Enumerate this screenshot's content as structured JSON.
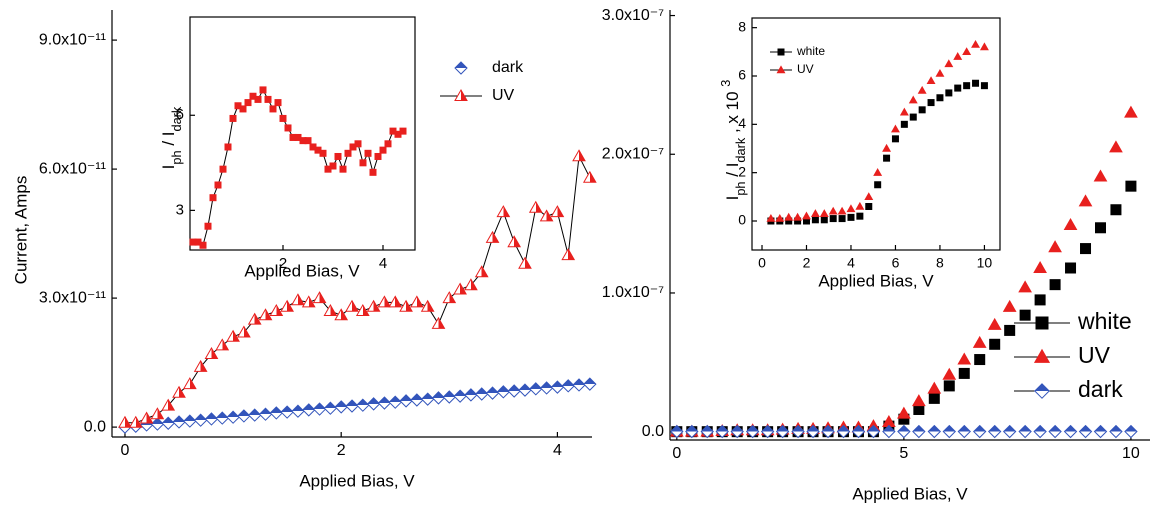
{
  "chart_data": [
    {
      "type": "scatter",
      "xlabel": "Applied Bias, V",
      "ylabel": "Current, Amps",
      "xlim": [
        -0.12,
        4.32
      ],
      "xticks": [
        0,
        2,
        4
      ],
      "ylim": [
        -2.3e-12,
        9.7e-11
      ],
      "yticks": [
        {
          "value": 0,
          "label": "0.0"
        },
        {
          "value": 3e-11,
          "label": "3.0x10⁻¹¹"
        },
        {
          "value": 6e-11,
          "label": "6.0x10⁻¹¹"
        },
        {
          "value": 9e-11,
          "label": "9.0x10⁻¹¹"
        }
      ],
      "x": [
        0,
        0.1,
        0.2,
        0.3,
        0.4,
        0.5,
        0.6,
        0.7,
        0.8,
        0.9,
        1.0,
        1.1,
        1.2,
        1.3,
        1.4,
        1.5,
        1.6,
        1.7,
        1.8,
        1.9,
        2.0,
        2.1,
        2.2,
        2.3,
        2.4,
        2.5,
        2.6,
        2.7,
        2.8,
        2.9,
        3.0,
        3.1,
        3.2,
        3.3,
        3.4,
        3.5,
        3.6,
        3.7,
        3.8,
        3.9,
        4.0,
        4.1,
        4.2,
        4.3
      ],
      "series": [
        {
          "name": "dark",
          "color": "#3355bb",
          "marker": "diamond",
          "fill": "half",
          "line": false,
          "values": [
            0,
            2e-13,
            5e-13,
            7e-13,
            9e-13,
            1.2e-12,
            1.4e-12,
            1.6e-12,
            1.9e-12,
            2.1e-12,
            2.3e-12,
            2.6e-12,
            2.8e-12,
            3e-12,
            3.3e-12,
            3.5e-12,
            3.7e-12,
            4e-12,
            4.2e-12,
            4.4e-12,
            4.7e-12,
            4.9e-12,
            5.1e-12,
            5.4e-12,
            5.6e-12,
            5.8e-12,
            6.1e-12,
            6.3e-12,
            6.5e-12,
            6.8e-12,
            7e-12,
            7.2e-12,
            7.5e-12,
            7.7e-12,
            7.9e-12,
            8.2e-12,
            8.4e-12,
            8.6e-12,
            8.9e-12,
            9.1e-12,
            9.3e-12,
            9.6e-12,
            9.8e-12,
            1e-11
          ]
        },
        {
          "name": "UV",
          "color": "#e8201e",
          "marker": "triangle",
          "fill": "half",
          "line": true,
          "values": [
            1e-12,
            1e-12,
            2e-12,
            3e-12,
            5e-12,
            8e-12,
            1e-11,
            1.4e-11,
            1.7e-11,
            1.9e-11,
            2.1e-11,
            2.2e-11,
            2.5e-11,
            2.6e-11,
            2.7e-11,
            2.8e-11,
            2.95e-11,
            2.9e-11,
            3e-11,
            2.7e-11,
            2.6e-11,
            2.8e-11,
            2.7e-11,
            2.8e-11,
            2.9e-11,
            2.9e-11,
            2.8e-11,
            2.9e-11,
            2.8e-11,
            2.4e-11,
            3e-11,
            3.2e-11,
            3.3e-11,
            3.6e-11,
            4.4e-11,
            5e-11,
            4.3e-11,
            3.8e-11,
            5.1e-11,
            4.9e-11,
            5e-11,
            4e-11,
            6.3e-11,
            5.8e-11
          ]
        }
      ]
    },
    {
      "type": "scatter",
      "xlabel": "Applied Bias, V",
      "ylabel_parts": [
        "I",
        "ph",
        " / I",
        "dark"
      ],
      "xlim": [
        0.14,
        4.64
      ],
      "xticks": [
        2,
        4
      ],
      "ylim": [
        1.75,
        9.1
      ],
      "yticks": [
        3,
        6
      ],
      "x": [
        0.2,
        0.3,
        0.4,
        0.5,
        0.6,
        0.7,
        0.8,
        0.9,
        1.0,
        1.1,
        1.2,
        1.3,
        1.4,
        1.5,
        1.6,
        1.7,
        1.8,
        1.9,
        2.0,
        2.1,
        2.2,
        2.3,
        2.4,
        2.5,
        2.6,
        2.7,
        2.8,
        2.9,
        3.0,
        3.1,
        3.2,
        3.3,
        3.4,
        3.5,
        3.6,
        3.7,
        3.8,
        3.9,
        4.0,
        4.1,
        4.2,
        4.3,
        4.4
      ],
      "series": [
        {
          "color": "#e8201e",
          "marker": "square",
          "fill": "solid",
          "line": true,
          "values": [
            2.0,
            2.0,
            1.9,
            2.5,
            3.4,
            3.8,
            4.3,
            5.0,
            5.9,
            6.3,
            6.2,
            6.4,
            6.6,
            6.5,
            6.8,
            6.5,
            6.2,
            6.4,
            5.9,
            5.6,
            5.3,
            5.3,
            5.2,
            5.2,
            5.0,
            4.9,
            4.8,
            4.3,
            4.4,
            4.7,
            4.3,
            4.8,
            5.0,
            5.1,
            4.5,
            4.8,
            4.2,
            4.7,
            4.9,
            5.1,
            5.5,
            5.4,
            5.5
          ]
        }
      ]
    },
    {
      "type": "scatter",
      "xlabel": "Applied Bias, V",
      "xlim": [
        -0.15,
        10.42
      ],
      "xticks": [
        0,
        5,
        10
      ],
      "ylim": [
        -6e-09,
        3.04e-07
      ],
      "yticks": [
        {
          "value": 0,
          "label": "0.0"
        },
        {
          "value": 1e-07,
          "label": "1.0x10⁻⁷"
        },
        {
          "value": 2e-07,
          "label": "2.0x10⁻⁷"
        },
        {
          "value": 3e-07,
          "label": "3.0x10⁻⁷"
        }
      ],
      "x": [
        0,
        0.33,
        0.67,
        1,
        1.33,
        1.67,
        2,
        2.33,
        2.67,
        3,
        3.33,
        3.67,
        4,
        4.33,
        4.67,
        5,
        5.33,
        5.67,
        6,
        6.33,
        6.67,
        7,
        7.33,
        7.67,
        8,
        8.33,
        8.67,
        9,
        9.33,
        9.67,
        10
      ],
      "series": [
        {
          "name": "white",
          "color": "#000000",
          "marker": "square",
          "fill": "solid",
          "line": false,
          "values": [
            0,
            0,
            0,
            0,
            0,
            0,
            0,
            0,
            0,
            0,
            0,
            0,
            0,
            0,
            4e-09,
            9e-09,
            1.6e-08,
            2.4e-08,
            3.3e-08,
            4.2e-08,
            5.2e-08,
            6.3e-08,
            7.3e-08,
            8.4e-08,
            9.5e-08,
            1.06e-07,
            1.18e-07,
            1.32e-07,
            1.47e-07,
            1.6e-07,
            1.77e-07
          ]
        },
        {
          "name": "UV",
          "color": "#e8201e",
          "marker": "triangle",
          "fill": "solid",
          "line": false,
          "values": [
            0,
            0,
            0,
            5e-10,
            1e-09,
            1e-09,
            1e-09,
            1.5e-09,
            2e-09,
            2e-09,
            2.5e-09,
            3e-09,
            3e-09,
            4e-09,
            7e-09,
            1.3e-08,
            2.2e-08,
            3.1e-08,
            4.1e-08,
            5.2e-08,
            6.4e-08,
            7.7e-08,
            9e-08,
            1.04e-07,
            1.18e-07,
            1.33e-07,
            1.49e-07,
            1.66e-07,
            1.84e-07,
            2.05e-07,
            2.3e-07
          ]
        },
        {
          "name": "dark",
          "color": "#3355bb",
          "marker": "diamond",
          "fill": "half",
          "line": false,
          "values": [
            1e-10,
            1e-10,
            1e-10,
            1e-10,
            1e-10,
            1e-10,
            1e-10,
            1e-10,
            1e-10,
            1e-10,
            1e-10,
            1e-10,
            1e-10,
            1e-10,
            1e-10,
            1e-10,
            1e-10,
            1e-10,
            1e-10,
            1e-10,
            1e-10,
            1e-10,
            1e-10,
            1e-10,
            1e-10,
            1e-10,
            1e-10,
            1e-10,
            1e-10,
            1e-10,
            1e-10
          ]
        }
      ]
    },
    {
      "type": "scatter",
      "xlabel": "Applied Bias, V",
      "ylabel_parts": [
        "I",
        "ph",
        " / I",
        "dark",
        " , x 10 ",
        "3"
      ],
      "xlim": [
        -0.45,
        10.7
      ],
      "xticks": [
        0,
        2,
        4,
        6,
        8,
        10
      ],
      "ylim": [
        -1.2,
        8.4
      ],
      "yticks": [
        0,
        2,
        4,
        6,
        8
      ],
      "x": [
        0.4,
        0.8,
        1.2,
        1.6,
        2.0,
        2.4,
        2.8,
        3.2,
        3.6,
        4.0,
        4.4,
        4.8,
        5.2,
        5.6,
        6.0,
        6.4,
        6.8,
        7.2,
        7.6,
        8.0,
        8.4,
        8.8,
        9.2,
        9.6,
        10.0
      ],
      "series": [
        {
          "name": "white",
          "color": "#000000",
          "marker": "square",
          "fill": "solid",
          "line": false,
          "values": [
            0,
            0,
            0,
            0,
            0,
            0.05,
            0.05,
            0.1,
            0.1,
            0.15,
            0.2,
            0.6,
            1.5,
            2.6,
            3.4,
            4.0,
            4.3,
            4.6,
            4.9,
            5.1,
            5.3,
            5.5,
            5.6,
            5.7,
            5.6
          ]
        },
        {
          "name": "UV",
          "color": "#e8201e",
          "marker": "triangle",
          "fill": "solid",
          "line": false,
          "values": [
            0.1,
            0.1,
            0.15,
            0.15,
            0.2,
            0.3,
            0.3,
            0.4,
            0.4,
            0.5,
            0.6,
            1.0,
            2.0,
            3.0,
            3.8,
            4.5,
            5.0,
            5.4,
            5.8,
            6.1,
            6.5,
            6.8,
            7.0,
            7.3,
            7.2
          ]
        }
      ]
    }
  ]
}
